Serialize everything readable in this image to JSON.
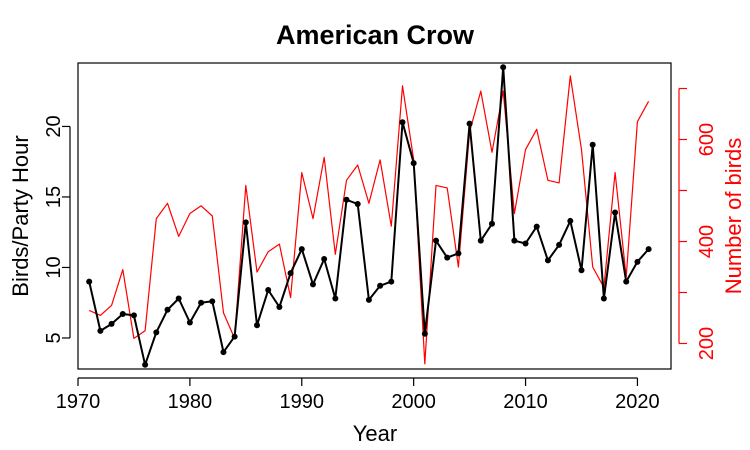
{
  "chart_data": {
    "type": "line",
    "title": "American Crow",
    "xlabel": "Year",
    "ylabel": "Birds/Party Hour",
    "y2label": "Number of birds",
    "xlim": [
      1970,
      2023
    ],
    "ylim": [
      2.8,
      24.5
    ],
    "y2lim": [
      150,
      750
    ],
    "xticks": [
      1970,
      1980,
      1990,
      2000,
      2010,
      2020
    ],
    "yticks": [
      5,
      10,
      15,
      20
    ],
    "y2ticks": [
      200,
      300,
      400,
      500,
      600,
      700
    ],
    "y2ticklabels": [
      200,
      "",
      400,
      "",
      600,
      ""
    ],
    "colors": {
      "left_series": "#000000",
      "right_series": "#ff0000",
      "right_axis": "#ff0000"
    },
    "series": [
      {
        "axis": "left",
        "markers": true,
        "x": [
          1971,
          1972,
          1973,
          1974,
          1975,
          1976,
          1977,
          1978,
          1979,
          1980,
          1981,
          1982,
          1983,
          1984,
          1985,
          1986,
          1987,
          1988,
          1989,
          1990,
          1991,
          1992,
          1993,
          1994,
          1995,
          1996,
          1997,
          1998,
          1999,
          2000,
          2001,
          2002,
          2003,
          2004,
          2005,
          2006,
          2007,
          2008,
          2009,
          2010,
          2011,
          2012,
          2013,
          2014,
          2015,
          2016,
          2017,
          2018,
          2019,
          2020,
          2021
        ],
        "values": [
          9.0,
          5.5,
          6.0,
          6.7,
          6.6,
          3.1,
          5.4,
          7.0,
          7.8,
          6.1,
          7.5,
          7.6,
          4.0,
          5.1,
          13.2,
          5.9,
          8.4,
          7.2,
          9.6,
          11.3,
          8.8,
          10.6,
          7.8,
          14.8,
          14.5,
          7.7,
          8.7,
          9.0,
          20.3,
          17.4,
          5.3,
          11.9,
          10.7,
          11.0,
          20.2,
          11.9,
          13.1,
          24.2,
          11.9,
          11.7,
          12.9,
          10.5,
          11.6,
          13.3,
          9.8,
          18.7,
          7.8,
          13.9,
          9.0,
          10.4,
          11.3
        ]
      },
      {
        "axis": "right",
        "markers": false,
        "x": [
          1971,
          1972,
          1973,
          1974,
          1975,
          1976,
          1977,
          1978,
          1979,
          1980,
          1981,
          1982,
          1983,
          1984,
          1985,
          1986,
          1987,
          1988,
          1989,
          1990,
          1991,
          1992,
          1993,
          1994,
          1995,
          1996,
          1997,
          1998,
          1999,
          2000,
          2001,
          2002,
          2003,
          2004,
          2005,
          2006,
          2007,
          2008,
          2009,
          2010,
          2011,
          2012,
          2013,
          2014,
          2015,
          2016,
          2017,
          2018,
          2019,
          2020,
          2021
        ],
        "values": [
          265,
          255,
          275,
          345,
          210,
          225,
          445,
          475,
          410,
          455,
          470,
          450,
          260,
          210,
          510,
          340,
          380,
          395,
          290,
          535,
          445,
          565,
          375,
          520,
          550,
          475,
          560,
          430,
          705,
          560,
          160,
          510,
          505,
          350,
          615,
          695,
          575,
          695,
          455,
          580,
          620,
          520,
          515,
          725,
          580,
          350,
          310,
          535,
          330,
          635,
          675
        ]
      }
    ]
  }
}
